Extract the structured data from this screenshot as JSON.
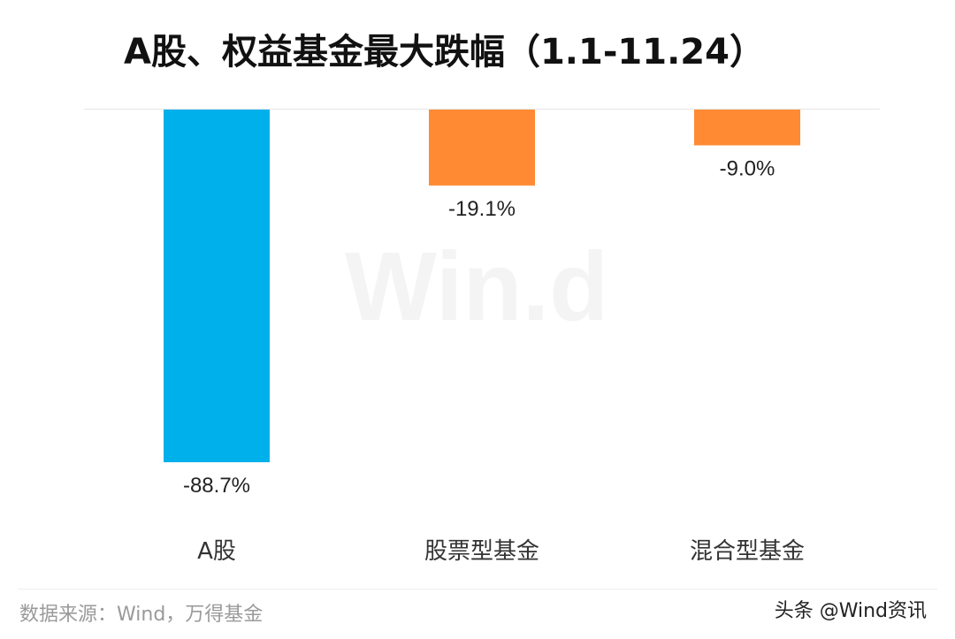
{
  "chart_data": {
    "type": "bar",
    "title": "A股、权益基金最大跌幅（1.1-11.24）",
    "categories": [
      "A股",
      "股票型基金",
      "混合型基金"
    ],
    "values": [
      -88.7,
      -19.1,
      -9.0
    ],
    "value_labels": [
      "-88.7%",
      "-19.1%",
      "-9.0%"
    ],
    "colors": [
      "#00B0EB",
      "#FF8A33",
      "#FF8A33"
    ],
    "ylim": [
      -88.7,
      0
    ],
    "grid": false,
    "legend": "none",
    "xlabel": "",
    "ylabel": ""
  },
  "source": "数据来源：Wind，万得基金",
  "watermark": "Win.d",
  "credit": "头条 @Wind资讯"
}
